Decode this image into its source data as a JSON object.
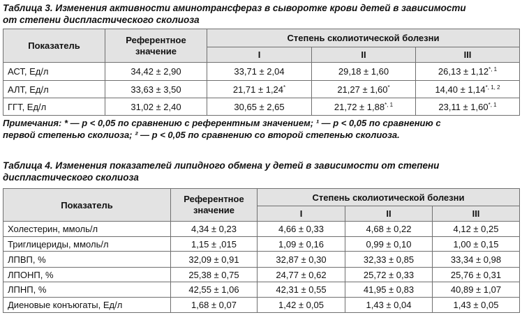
{
  "table3": {
    "caption_line1": "Таблица 3. Изменения активности аминотрансфераз в сыворотке крови детей в зависимости",
    "caption_line2": "от степени диспластического сколиоза",
    "header": {
      "indicator": "Показатель",
      "reference_line1": "Референтное",
      "reference_line2": "значение",
      "group": "Степень сколиотической болезни",
      "deg1": "I",
      "deg2": "II",
      "deg3": "III"
    },
    "rows": [
      {
        "label": "АСТ, Ед/л",
        "ref": "34,42 ± 2,90",
        "d1": "33,71 ± 2,04",
        "d1_sup": "",
        "d2": "29,18 ± 1,60",
        "d2_sup": "",
        "d3": "26,13 ± 1,12",
        "d3_sup": "*, 1"
      },
      {
        "label": "АЛТ, Ед/л",
        "ref": "33,63 ± 3,50",
        "d1": "21,71 ± 1,24",
        "d1_sup": "*",
        "d2": "21,27 ± 1,60",
        "d2_sup": "*",
        "d3": "14,40 ± 1,14",
        "d3_sup": "*, 1, 2"
      },
      {
        "label": "ГГТ, Ед/л",
        "ref": "31,02 ± 2,40",
        "d1": "30,65 ± 2,65",
        "d1_sup": "",
        "d2": "21,72 ± 1,88",
        "d2_sup": "*, 1",
        "d3": "23,11 ± 1,60",
        "d3_sup": "*, 1"
      }
    ],
    "note_line1": "Примечания: * — p < 0,05 по сравнению с референтным значением; ¹ — p < 0,05 по сравнению с",
    "note_line2": "первой степенью сколиоза; ² — p < 0,05 по сравнению со второй степенью сколиоза."
  },
  "table4": {
    "caption_line1": "Таблица 4. Изменения показателей липидного обмена у детей в зависимости от степени",
    "caption_line2": "диспластического сколиоза",
    "header": {
      "indicator": "Показатель",
      "reference_line1": "Референтное",
      "reference_line2": "значение",
      "group": "Степень сколиотической болезни",
      "deg1": "I",
      "deg2": "II",
      "deg3": "III"
    },
    "rows": [
      {
        "label": "Холестерин, ммоль/л",
        "ref": "4,34 ± 0,23",
        "d1": "4,66 ± 0,33",
        "d2": "4,68 ± 0,22",
        "d3": "4,12 ± 0,25"
      },
      {
        "label": "Триглицериды, ммоль/л",
        "ref": "1,15 ± ,015",
        "d1": "1,09 ± 0,16",
        "d2": "0,99 ± 0,10",
        "d3": "1,00 ± 0,15"
      },
      {
        "label": "ЛПВП, %",
        "ref": "32,09 ± 0,91",
        "d1": "32,87 ± 0,30",
        "d2": "32,33 ± 0,85",
        "d3": "33,34 ± 0,98"
      },
      {
        "label": "ЛПОНП, %",
        "ref": "25,38 ± 0,75",
        "d1": "24,77 ± 0,62",
        "d2": "25,72 ± 0,33",
        "d3": "25,76 ± 0,31"
      },
      {
        "label": "ЛПНП, %",
        "ref": "42,55 ± 1,06",
        "d1": "42,31 ± 0,55",
        "d2": "41,95 ± 0,83",
        "d3": "40,89 ± 1,07"
      },
      {
        "label": "Диеновые конъюгаты, Ед/л",
        "ref": "1,68 ± 0,07",
        "d1": "1,42 ± 0,05",
        "d2": "1,43 ± 0,04",
        "d3": "1,43 ± 0,05"
      }
    ]
  }
}
